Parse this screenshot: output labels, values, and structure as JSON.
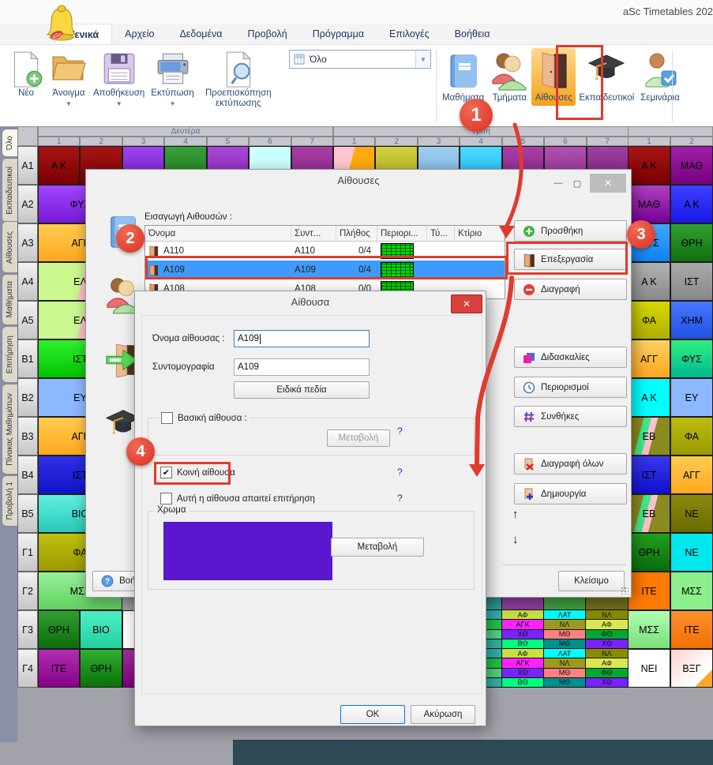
{
  "window": {
    "title": "aSc Timetables 202"
  },
  "menu": {
    "tabs": [
      "Γενικά",
      "Αρχείο",
      "Δεδομένα",
      "Προβολή",
      "Πρόγραμμα",
      "Επιλογές",
      "Βοήθεια"
    ],
    "active_tab": "Γενικά"
  },
  "toolbar": {
    "file_buttons": [
      {
        "label": "Νέο",
        "icon": "new-document-icon",
        "dropdown": false
      },
      {
        "label": "Άνοιγμα",
        "icon": "open-folder-icon",
        "dropdown": true
      },
      {
        "label": "Αποθήκευση",
        "icon": "save-floppy-icon",
        "dropdown": true
      },
      {
        "label": "Εκτύπωση",
        "icon": "print-icon",
        "dropdown": true
      },
      {
        "label": "Προεπισκόπηση εκτύπωσης",
        "icon": "print-preview-icon",
        "dropdown": false
      }
    ],
    "view_dropdown": {
      "value": "Όλο",
      "icon": "table-icon"
    },
    "entity_buttons": [
      {
        "label": "Μαθήματα",
        "icon": "book-icon",
        "highlighted": false
      },
      {
        "label": "Τμήματα",
        "icon": "classes-icon",
        "highlighted": false
      },
      {
        "label": "Αίθουσες",
        "icon": "door-icon",
        "highlighted": true
      },
      {
        "label": "Εκπαιδευτικοί",
        "icon": "graduation-cap-icon",
        "highlighted": false
      },
      {
        "label": "Σεμινάρια",
        "icon": "seminar-icon",
        "highlighted": false
      }
    ]
  },
  "sidebar": {
    "tabs": [
      "Όλο",
      "Εκπαιδευτικοί",
      "Αίθουσες",
      "Μαθήματα",
      "Επιτήρηση",
      "Πίνακας Μαθημάτων",
      "Προβολή 1"
    ],
    "active_tab": "Όλο"
  },
  "timetable": {
    "day_headers": [
      {
        "label": "Δευτέρα",
        "span": 7
      },
      {
        "label": "Τρίτη",
        "span": 7
      },
      {
        "label": "",
        "span": 2
      }
    ],
    "period_numbers": [
      "1",
      "2",
      "3",
      "4",
      "5",
      "6",
      "7",
      "1",
      "2",
      "3",
      "4",
      "5",
      "6",
      "7",
      "1",
      "2"
    ],
    "row_labels": [
      "A1",
      "A2",
      "A3",
      "A4",
      "A5",
      "B1",
      "B2",
      "B3",
      "B4",
      "B5",
      "Γ1",
      "Γ2",
      "Γ3",
      "Γ4"
    ],
    "top_row_cells": [
      {
        "label": "Α Κ",
        "bg": "linear-gradient(#a81515,#7a0000)"
      },
      {
        "label": "",
        "bg": "linear-gradient(#a81515,#7a0000)"
      },
      {
        "label": "",
        "bg": "linear-gradient(#9a45f0,#7a1ad0)"
      },
      {
        "label": "",
        "bg": "linear-gradient(#3aa03a,#1e7a1e)"
      },
      {
        "label": "",
        "bg": "linear-gradient(#a848d8,#8a22b8)"
      },
      {
        "label": "",
        "bg": "#ccffff"
      },
      {
        "label": "",
        "bg": "linear-gradient(#a840a8,#882288)"
      },
      {
        "label": "",
        "bg": "linear-gradient(105deg,#ffc8d0 42%,#ffaa10 42%)"
      },
      {
        "label": "",
        "bg": "linear-gradient(#d0d040,#b0b020)"
      },
      {
        "label": "",
        "bg": "linear-gradient(#a0cef2,#7ab2e2)"
      },
      {
        "label": "",
        "bg": "linear-gradient(#50d8ff,#18b8f0)"
      },
      {
        "label": "",
        "bg": "linear-gradient(#a840a8,#882288)"
      },
      {
        "label": "",
        "bg": "linear-gradient(#b050b0,#903090)"
      },
      {
        "label": "",
        "bg": "linear-gradient(#a040a0,#802080)"
      }
    ],
    "left_cells": [
      {
        "row": "A2",
        "label": "ΦΥΣ",
        "bg": "linear-gradient(#a048ff,#7818d8)"
      },
      {
        "row": "A3",
        "label": "ΑΓΓ",
        "bg": "linear-gradient(#ffcc50,#ffa820)"
      },
      {
        "row": "A4",
        "label": "ΕΛ",
        "bg": "linear-gradient(105deg,#ccf890 52%,#ffc0cb 52%,#ffc0cb 70%,#ccf890 70%)"
      },
      {
        "row": "A5",
        "label": "ΕΛ",
        "bg": "linear-gradient(105deg,#ccf890 52%,#ffc0cb 52%,#ffc0cb 70%,#ccf890 70%)"
      },
      {
        "row": "B1",
        "label": "ΙΣΤ",
        "bg": "linear-gradient(#30f030,#00c400)"
      },
      {
        "row": "B2",
        "label": "ΕΥ",
        "bg": "#8cb8ff"
      },
      {
        "row": "B3",
        "label": "ΑΓΓ",
        "bg": "linear-gradient(#ffcc50,#ffa820)"
      },
      {
        "row": "B4",
        "label": "ΙΣΤ",
        "bg": "linear-gradient(#3030e8,#1212c8)"
      },
      {
        "row": "B5",
        "label": "ΒΙΟ",
        "bg": "linear-gradient(#60f0e0,#28c8b8)"
      },
      {
        "row": "Γ1",
        "label": "ΦΑ",
        "bg": "linear-gradient(#c0c010,#9a9a00)"
      },
      {
        "row": "Γ2",
        "label": "ΜΣΣ",
        "bg": "linear-gradient(#98f098,#60d060)"
      }
    ],
    "right_cells": [
      {
        "row": "A1",
        "cells": [
          {
            "label": "Α Κ",
            "bg": "linear-gradient(#a81515,#7a0000)"
          },
          {
            "label": "ΜΑΘ",
            "bg": "linear-gradient(#a020a8,#780080)"
          }
        ]
      },
      {
        "row": "A2",
        "cells": [
          {
            "label": "ΜΑΘ",
            "bg": "linear-gradient(#b040c0,#780098)"
          },
          {
            "label": "Α Κ",
            "bg": "linear-gradient(#4040ff,#1818e8)"
          }
        ]
      },
      {
        "row": "A3",
        "cells": [
          {
            "label": "ΦΥΣ",
            "bg": "linear-gradient(#40a8ff,#1080f0)"
          },
          {
            "label": "ΘΡΗ",
            "bg": "linear-gradient(#30a030,#107010)"
          }
        ]
      },
      {
        "row": "A4",
        "cells": [
          {
            "label": "Α Κ",
            "bg": "linear-gradient(#b2b2b2,#8a8a8a)"
          },
          {
            "label": "ΙΣΤ",
            "bg": "linear-gradient(#aaaaaa,#888888)"
          }
        ]
      },
      {
        "row": "A5",
        "cells": [
          {
            "label": "ΦΑ",
            "bg": "linear-gradient(#d8d800,#b0b000)"
          },
          {
            "label": "ΧΗΜ",
            "bg": "linear-gradient(#4878ff,#2050e0)"
          }
        ]
      },
      {
        "row": "B1",
        "cells": [
          {
            "label": "ΑΓΓ",
            "bg": "linear-gradient(#ffd060,#ffa820)"
          },
          {
            "label": "ΦΥΣ",
            "bg": "linear-gradient(#30f080,#00b890)"
          }
        ]
      },
      {
        "row": "B2",
        "cells": [
          {
            "label": "Α Κ",
            "bg": "#00ffff"
          },
          {
            "label": "ΕΥ",
            "bg": "#8cb8ff"
          }
        ]
      },
      {
        "row": "B3",
        "cells": [
          {
            "label": "ΕΒ",
            "bg": "linear-gradient(105deg,#8a8a20 30%,#44e888 30%,#44e888 45%,#ffc0d0 45%,#ffc0d0 58%,#8a8a20 58%)"
          },
          {
            "label": "ΦΑ",
            "bg": "linear-gradient(#bcbc10,#9a9a00)"
          }
        ]
      },
      {
        "row": "B4",
        "cells": [
          {
            "label": "ΙΣΤ",
            "bg": "linear-gradient(#3838f0,#1010d0)"
          },
          {
            "label": "ΑΓΓ",
            "bg": "linear-gradient(#ffcc50,#ffa820)"
          }
        ]
      },
      {
        "row": "B5",
        "cells": [
          {
            "label": "ΕΒ",
            "bg": "linear-gradient(105deg,#8a8a20 30%,#44e888 30%,#44e888 45%,#ffc0d0 45%,#ffc0d0 58%,#8a8a20 58%)"
          },
          {
            "label": "ΝΕ",
            "bg": "linear-gradient(#8a8a10,#6a6a00)"
          }
        ]
      },
      {
        "row": "Γ1",
        "cells": [
          {
            "label": "ΘΡΗ",
            "bg": "linear-gradient(#20a020,#0c6c0c)"
          },
          {
            "label": "ΝΕ",
            "bg": "#00e8ee"
          }
        ]
      },
      {
        "row": "Γ2",
        "cells": [
          {
            "label": "ΙΤΕ",
            "bg": "#ff7a00"
          },
          {
            "label": "ΜΣΣ",
            "bg": "#8cee8c"
          }
        ]
      },
      {
        "row": "Γ3",
        "cells": [
          {
            "label": "ΜΣΣ",
            "bg": "linear-gradient(#b0ffb0,#7ade7a)"
          },
          {
            "label": "ΙΤΕ",
            "bg": "linear-gradient(#ff9030,#f07000)"
          }
        ]
      },
      {
        "row": "Γ4",
        "cells": [
          {
            "label": "ΝΕΙ",
            "bg": "#ffffff"
          },
          {
            "label": "ΒΞΓ",
            "bg": "linear-gradient(315deg,#ffa820 22%,rgba(255,255,255,0) 22%),linear-gradient(135deg,#ffd0d0,#ffffff 70%)"
          }
        ]
      }
    ],
    "bottom_left_cells": [
      {
        "row": "Γ3",
        "cells": [
          {
            "label": "ΘΡΗ",
            "bg": "linear-gradient(#30a030,#0c6c0c)"
          },
          {
            "label": "ΒΙΟ",
            "bg": "linear-gradient(#50f0c8,#20d0a0)"
          },
          {
            "label": "",
            "bg": "#ffffff"
          }
        ]
      },
      {
        "row": "Γ4",
        "cells": [
          {
            "label": "ΙΤΕ",
            "bg": "linear-gradient(#b030b0,#880088)"
          },
          {
            "label": "ΘΡΗ",
            "bg": "linear-gradient(#30b030,#0a700a)"
          },
          {
            "label": "",
            "bg": "linear-gradient(#a030a0,#800080)"
          }
        ]
      }
    ],
    "mini_columns": {
      "rows": [
        "Γ3",
        "Γ4"
      ],
      "columns": [
        {
          "partial": true,
          "strips": [
            {
              "label": "",
              "color": "#2fb0ac"
            },
            {
              "label": "",
              "color": "#22c044"
            },
            {
              "label": "",
              "color": "#50d080"
            },
            {
              "label": "",
              "color": "#2fb0a0"
            }
          ]
        },
        {
          "partial": false,
          "strips": [
            {
              "label": "ΑΦ",
              "color": "#c8e040"
            },
            {
              "label": "ΑΓΚ",
              "color": "#ff22ff"
            },
            {
              "label": "ΧΘ",
              "color": "#7a22ff"
            },
            {
              "label": "ΒΘ",
              "color": "#00ff7f"
            }
          ]
        },
        {
          "partial": false,
          "strips": [
            {
              "label": "ΛΑΤ",
              "color": "#00ffff"
            },
            {
              "label": "ΝΛ",
              "color": "#9a9a20"
            },
            {
              "label": "ΜΘ",
              "color": "#ff8080"
            },
            {
              "label": "ΜΘ",
              "color": "#009090"
            }
          ]
        },
        {
          "partial": false,
          "strips": [
            {
              "label": "ΝΛ",
              "color": "#8a8a00"
            },
            {
              "label": "ΑΦ",
              "color": "#d8e850"
            },
            {
              "label": "ΦΘ",
              "color": "#00a830"
            },
            {
              "label": "ΧΘ",
              "color": "#7a22ff"
            }
          ]
        }
      ]
    },
    "gamma2_sliver_colors": [
      "#30a0a0",
      "#9040a0",
      "#40a040",
      "#707020"
    ]
  },
  "rooms_dialog": {
    "title": "Αίθουσες",
    "intro_label": "Εισαγωγή Αιθουσών :",
    "table": {
      "columns": [
        "Όνομα",
        "Συντ...",
        "Πλήθος",
        "Περιορι...",
        "Τύ...",
        "Κτίριο"
      ],
      "rows": [
        {
          "name": "A110",
          "abbr": "A110",
          "count": "0/4",
          "selected": false
        },
        {
          "name": "A109",
          "abbr": "A109",
          "count": "0/4",
          "selected": true
        },
        {
          "name": "A108",
          "abbr": "A108",
          "count": "0/0",
          "selected": false
        }
      ]
    },
    "action_buttons": [
      {
        "label": "Προσθήκη",
        "icon": "plus-circle-icon"
      },
      {
        "label": "Επεξεργασία",
        "icon": "small-door-icon"
      },
      {
        "label": "Διαγραφή",
        "icon": "minus-circle-icon"
      },
      {
        "label": "Διδασκαλίες",
        "icon": "lessons-icon"
      },
      {
        "label": "Περιορισμοί",
        "icon": "clock-icon"
      },
      {
        "label": "Συνθήκες",
        "icon": "hash-icon"
      },
      {
        "label": "Διαγραφή όλων",
        "icon": "delete-all-icon"
      },
      {
        "label": "Δημιουργία",
        "icon": "create-icon"
      }
    ],
    "up_arrow": "↑",
    "down_arrow": "↓",
    "close_label": "Κλείσιμο",
    "help_label": "Βοήθεια"
  },
  "room_dialog": {
    "title": "Αίθουσα",
    "name_label": "Όνομα αίθουσας :",
    "name_value": "A109",
    "abbr_label": "Συντομογραφία",
    "abbr_value": "A109",
    "special_fields_label": "Ειδικά πεδία",
    "base_room_label": "Βασική αίθουσα :",
    "base_room_checked": false,
    "base_change_label": "Μεταβολή",
    "shared_room_label": "Κοινή αίθουσα",
    "shared_room_checked": true,
    "supervision_label": "Αυτή η αίθουσα απαιτεί επιτήρηση",
    "supervision_checked": false,
    "help_mark": "?",
    "color_group_label": "Χρωμα",
    "color_value": "#5a17ce",
    "color_change_label": "Μεταβολή",
    "ok_label": "OK",
    "cancel_label": "Ακύρωση"
  },
  "annotations": {
    "accent_color": "#e03b2e",
    "badges": [
      "1",
      "2",
      "3",
      "4"
    ]
  }
}
